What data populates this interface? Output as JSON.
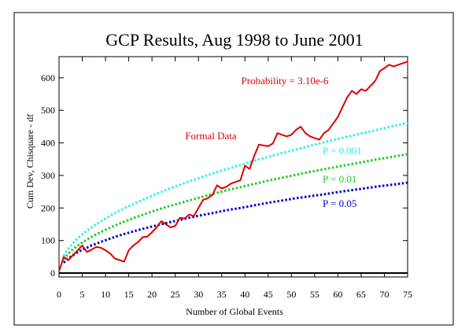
{
  "chart_data": {
    "type": "line",
    "title": "GCP Results, Aug 1998 to June 2001",
    "xlabel": "Number of Global Events",
    "ylabel": "Cum Dev, Chisquare - df",
    "xlim": [
      0,
      75
    ],
    "ylim": [
      -12,
      665
    ],
    "x_ticks": [
      0,
      5,
      10,
      15,
      20,
      25,
      30,
      35,
      40,
      45,
      50,
      55,
      60,
      65,
      70,
      75
    ],
    "y_ticks": [
      0,
      100,
      200,
      300,
      400,
      500,
      600
    ],
    "grid": false,
    "baseline_y": 0,
    "annotation_probability": "Probability = 3.10e-6",
    "series": [
      {
        "name": "Formal Data",
        "color": "#dd0000",
        "style": "solid",
        "x": [
          0,
          1,
          2,
          3,
          4,
          5,
          6,
          7,
          8,
          9,
          10,
          11,
          12,
          13,
          14,
          15,
          16,
          17,
          18,
          19,
          20,
          21,
          22,
          23,
          24,
          25,
          26,
          27,
          28,
          29,
          30,
          31,
          32,
          33,
          34,
          35,
          36,
          37,
          38,
          39,
          40,
          41,
          42,
          43,
          44,
          45,
          46,
          47,
          48,
          49,
          50,
          51,
          52,
          53,
          54,
          55,
          56,
          57,
          58,
          59,
          60,
          61,
          62,
          63,
          64,
          65,
          66,
          67,
          68,
          69,
          70,
          71,
          72,
          73,
          74,
          75
        ],
        "y": [
          5,
          50,
          40,
          55,
          70,
          85,
          65,
          72,
          80,
          78,
          70,
          60,
          45,
          40,
          35,
          70,
          85,
          95,
          110,
          112,
          125,
          140,
          160,
          150,
          140,
          145,
          170,
          168,
          180,
          175,
          200,
          225,
          230,
          240,
          270,
          260,
          265,
          275,
          280,
          285,
          330,
          320,
          360,
          395,
          392,
          390,
          398,
          430,
          425,
          420,
          425,
          440,
          450,
          430,
          420,
          415,
          410,
          430,
          440,
          460,
          480,
          510,
          540,
          560,
          550,
          565,
          560,
          575,
          590,
          620,
          630,
          640,
          635,
          640,
          645,
          650
        ]
      },
      {
        "name": "P = 0.001",
        "color": "#33eeee",
        "style": "dotted",
        "x": [
          1,
          2,
          3,
          4,
          5,
          6,
          7,
          8,
          9,
          10,
          12,
          14,
          16,
          18,
          20,
          22,
          24,
          26,
          28,
          30,
          33,
          36,
          39,
          42,
          45,
          48,
          51,
          54,
          57,
          60,
          63,
          66,
          69,
          72,
          75
        ],
        "y": [
          53,
          75,
          92,
          106,
          119,
          130,
          140,
          150,
          159,
          168,
          184,
          199,
          212,
          225,
          238,
          249,
          261,
          271,
          282,
          291,
          306,
          319,
          332,
          345,
          357,
          369,
          380,
          391,
          402,
          412,
          422,
          432,
          442,
          452,
          461
        ]
      },
      {
        "name": "P = 0.01",
        "color": "#22cc22",
        "style": "dotted",
        "x": [
          1,
          2,
          3,
          4,
          5,
          6,
          7,
          8,
          9,
          10,
          12,
          14,
          16,
          18,
          20,
          22,
          24,
          26,
          28,
          30,
          33,
          36,
          39,
          42,
          45,
          48,
          51,
          54,
          57,
          60,
          63,
          66,
          69,
          72,
          75
        ],
        "y": [
          42,
          59,
          73,
          84,
          94,
          103,
          111,
          119,
          126,
          133,
          146,
          158,
          169,
          179,
          189,
          198,
          207,
          215,
          223,
          231,
          243,
          254,
          264,
          274,
          284,
          293,
          302,
          311,
          319,
          327,
          335,
          343,
          351,
          358,
          365
        ]
      },
      {
        "name": "P = 0.05",
        "color": "#0000cc",
        "style": "dotted",
        "x": [
          1,
          2,
          3,
          4,
          5,
          6,
          7,
          8,
          9,
          10,
          12,
          14,
          16,
          18,
          20,
          22,
          24,
          26,
          28,
          30,
          33,
          36,
          39,
          42,
          45,
          48,
          51,
          54,
          57,
          60,
          63,
          66,
          69,
          72,
          75
        ],
        "y": [
          32,
          45,
          55,
          64,
          72,
          78,
          85,
          90,
          96,
          101,
          111,
          120,
          128,
          136,
          143,
          150,
          157,
          163,
          170,
          176,
          184,
          193,
          200,
          208,
          216,
          223,
          230,
          236,
          242,
          249,
          255,
          261,
          267,
          272,
          278
        ]
      }
    ]
  }
}
